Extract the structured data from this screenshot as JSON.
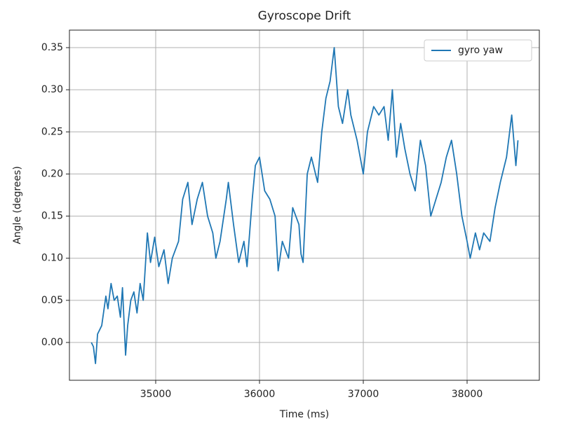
{
  "chart_data": {
    "type": "line",
    "title": "Gyroscope Drift",
    "x_label": "Time (ms)",
    "y_label": "Angle (degrees)",
    "x": [
      34380,
      34400,
      34420,
      34440,
      34480,
      34520,
      34540,
      34570,
      34600,
      34630,
      34660,
      34680,
      34710,
      34730,
      34760,
      34790,
      34820,
      34850,
      34880,
      34920,
      34950,
      34990,
      35030,
      35080,
      35120,
      35160,
      35220,
      35260,
      35310,
      35350,
      35400,
      35450,
      35500,
      35550,
      35580,
      35620,
      35680,
      35700,
      35750,
      35800,
      35850,
      35880,
      35930,
      35960,
      36000,
      36050,
      36100,
      36150,
      36180,
      36220,
      36280,
      36320,
      36380,
      36400,
      36420,
      36460,
      36500,
      36560,
      36600,
      36640,
      36680,
      36720,
      36760,
      36800,
      36850,
      36880,
      36940,
      37000,
      37040,
      37100,
      37150,
      37200,
      37240,
      37260,
      37280,
      37320,
      37360,
      37400,
      37450,
      37500,
      37550,
      37600,
      37650,
      37700,
      37750,
      37800,
      37850,
      37900,
      37950,
      38000,
      38030,
      38080,
      38120,
      38160,
      38220,
      38270,
      38320,
      38380,
      38430,
      38470,
      38490
    ],
    "series": [
      {
        "name": "gyro yaw",
        "color": "#1f77b4",
        "values": [
          0.0,
          -0.005,
          -0.025,
          0.01,
          0.02,
          0.055,
          0.04,
          0.07,
          0.05,
          0.055,
          0.03,
          0.065,
          -0.015,
          0.02,
          0.05,
          0.06,
          0.035,
          0.07,
          0.05,
          0.13,
          0.095,
          0.125,
          0.09,
          0.11,
          0.07,
          0.1,
          0.12,
          0.17,
          0.19,
          0.14,
          0.17,
          0.19,
          0.15,
          0.13,
          0.1,
          0.12,
          0.17,
          0.19,
          0.14,
          0.095,
          0.12,
          0.09,
          0.17,
          0.21,
          0.22,
          0.18,
          0.17,
          0.15,
          0.085,
          0.12,
          0.1,
          0.16,
          0.14,
          0.105,
          0.095,
          0.2,
          0.22,
          0.19,
          0.25,
          0.29,
          0.31,
          0.35,
          0.28,
          0.26,
          0.3,
          0.27,
          0.24,
          0.2,
          0.25,
          0.28,
          0.27,
          0.28,
          0.24,
          0.27,
          0.3,
          0.22,
          0.26,
          0.23,
          0.2,
          0.18,
          0.24,
          0.21,
          0.15,
          0.17,
          0.19,
          0.22,
          0.24,
          0.2,
          0.15,
          0.12,
          0.1,
          0.13,
          0.11,
          0.13,
          0.12,
          0.16,
          0.19,
          0.22,
          0.27,
          0.21,
          0.24
        ]
      }
    ],
    "xlim": [
      34169,
      38696
    ],
    "ylim": [
      -0.0449,
      0.3708
    ],
    "xticks": [
      35000,
      36000,
      37000,
      38000
    ],
    "yticks": [
      {
        "value": 0.0,
        "label": "0.00"
      },
      0.05,
      {
        "value": 0.1,
        "label": "0.10"
      },
      0.15,
      {
        "value": 0.2,
        "label": "0.20"
      },
      0.25,
      {
        "value": 0.3,
        "label": "0.30"
      },
      0.35
    ],
    "grid": true,
    "legend": "upper right"
  }
}
